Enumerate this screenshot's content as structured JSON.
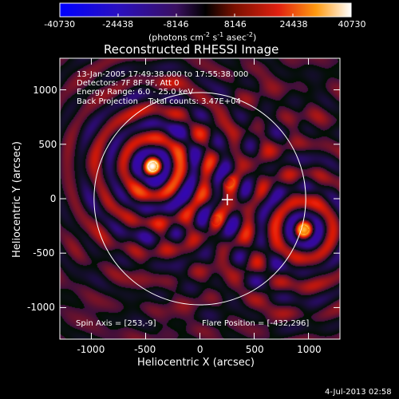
{
  "chart_data": {
    "type": "heatmap",
    "title": "Reconstructed RHESSI Image",
    "xlabel": "Heliocentric X (arcsec)",
    "ylabel": "Heliocentric Y (arcsec)",
    "xlim": [
      -1290,
      1290
    ],
    "ylim": [
      -1290,
      1290
    ],
    "xticks": [
      -1000,
      -500,
      0,
      500,
      1000
    ],
    "yticks": [
      -1000,
      -500,
      0,
      500,
      1000
    ],
    "colorbar": {
      "ticks": [
        "-40730",
        "-24438",
        "-8146",
        "8146",
        "24438",
        "40730"
      ],
      "range": [
        -40730,
        40730
      ],
      "unit_text": "(photons cm",
      "unit_sup1": "-2",
      "unit_mid": " s",
      "unit_sup2": "-1",
      "unit_mid2": " asec",
      "unit_sup3": "-2",
      "unit_end": ")"
    },
    "solar_disk_radius_arcsec": 975,
    "sources": [
      {
        "x": -432,
        "y": 296,
        "peak": 40730
      },
      {
        "x": 960,
        "y": -285,
        "peak": 31000
      },
      {
        "x": 270,
        "y": 150,
        "peak": 14000
      },
      {
        "x": 150,
        "y": -200,
        "peak": 12000
      }
    ],
    "spin_axis_marker": {
      "x": 253,
      "y": -9
    },
    "info_lines": [
      "13-Jan-2005 17:49:38.000 to 17:55:38.000",
      "Detectors: 7F 8F 9F, Att 0",
      "Energy Range: 6.0 - 25.0 keV",
      "Back Projection    Total counts: 3.47E+04"
    ],
    "spin_axis_label": "Spin Axis = [253,-9]",
    "flare_position_label": "Flare Position = [-432,296]",
    "footer_date": "4-Jul-2013 02:58"
  }
}
